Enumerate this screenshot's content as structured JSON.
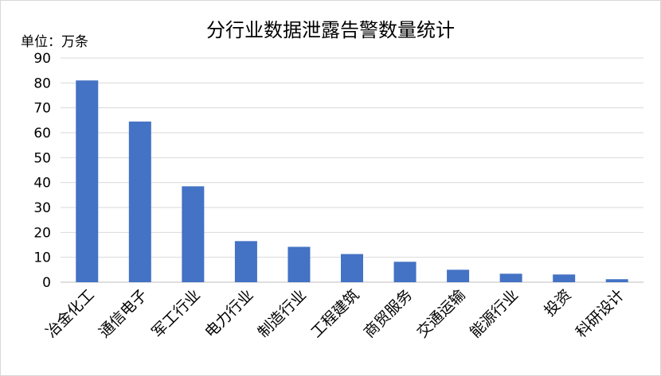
{
  "chart_data": {
    "type": "bar",
    "title": "分行业数据泄露告警数量统计",
    "unit_label": "单位：万条",
    "categories": [
      "冶金化工",
      "通信电子",
      "军工行业",
      "电力行业",
      "制造行业",
      "工程建筑",
      "商贸服务",
      "交通运输",
      "能源行业",
      "投资",
      "科研设计"
    ],
    "values": [
      81,
      64.5,
      38.5,
      16.5,
      14.2,
      11.3,
      8.2,
      5,
      3.4,
      3.1,
      1.2
    ],
    "ylim": [
      0,
      90
    ],
    "yticks": [
      0,
      10,
      20,
      30,
      40,
      50,
      60,
      70,
      80,
      90
    ],
    "grid": true,
    "bar_color": "#4472c4",
    "grid_color": "#d9d9d9"
  }
}
